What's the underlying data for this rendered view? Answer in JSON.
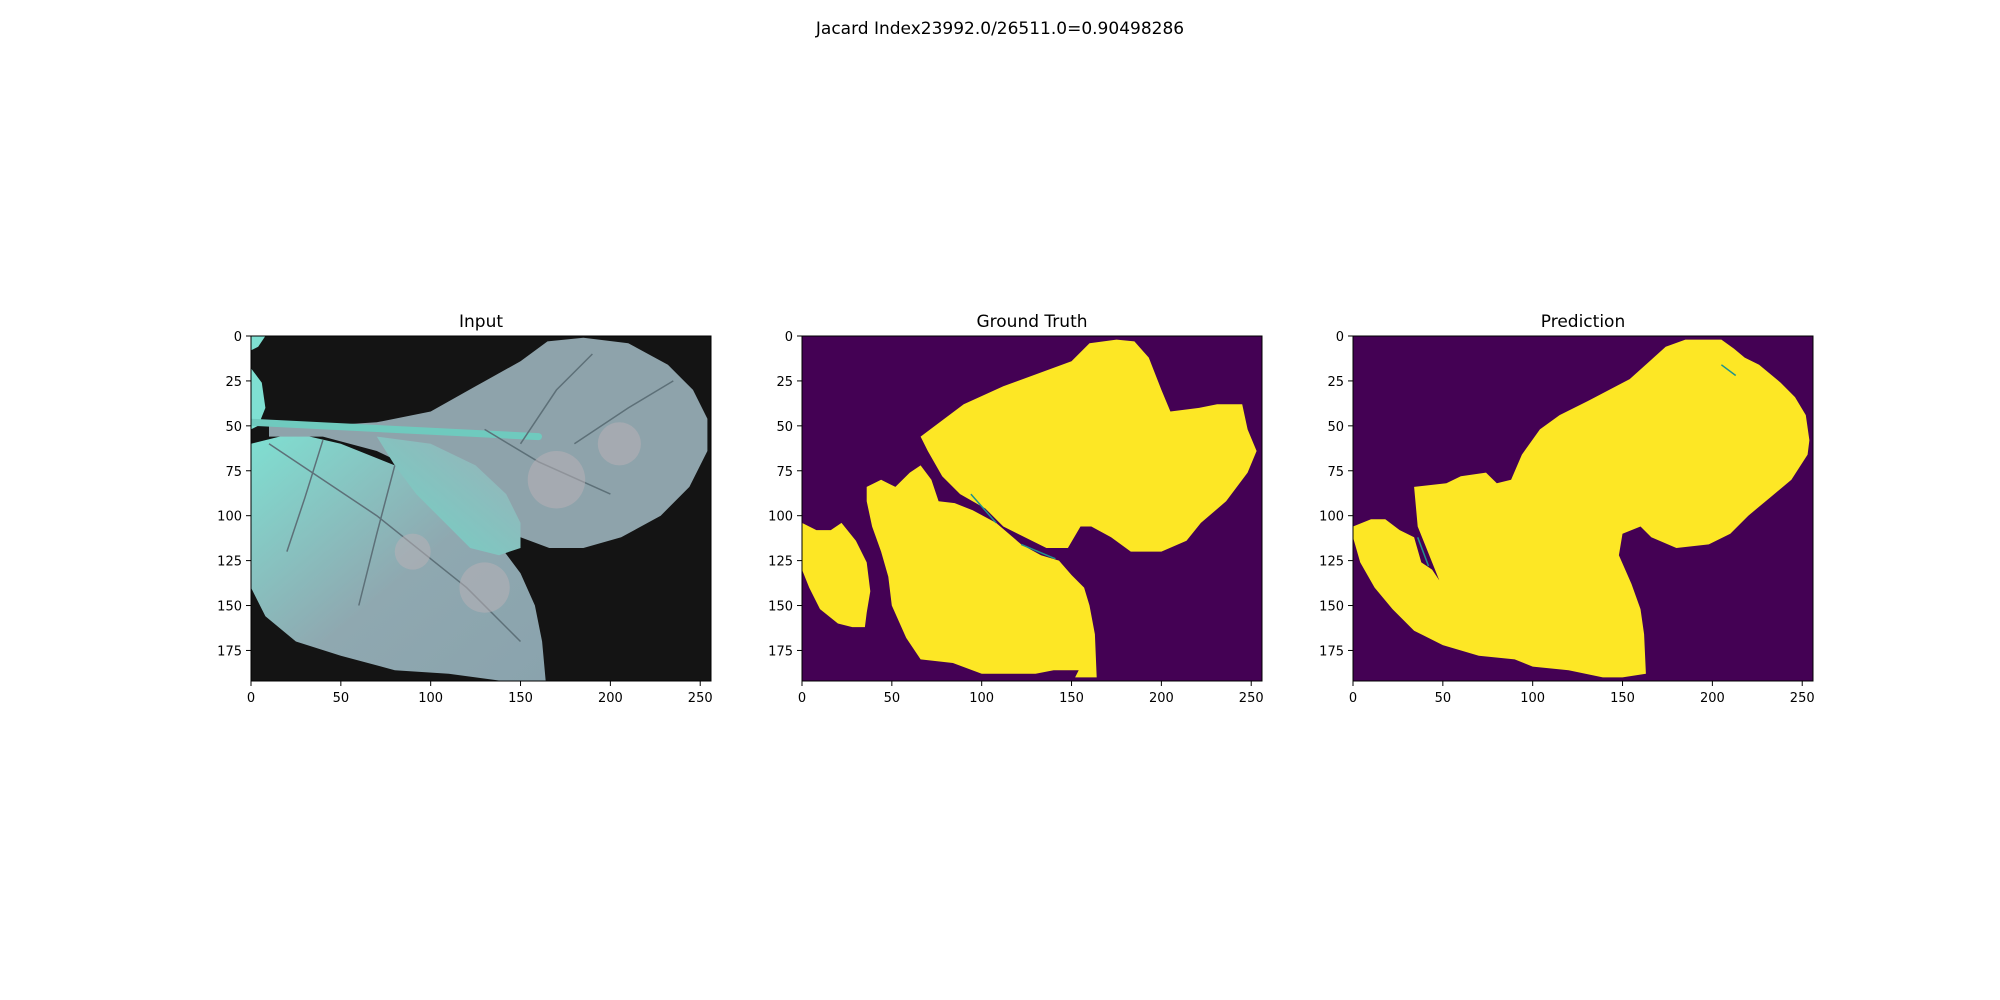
{
  "figure": {
    "suptitle": "Jacard Index23992.0/26511.0=0.90498286",
    "colors": {
      "background_mask": "#440154",
      "foreground_mask": "#fde725",
      "boundary_mask": "#21918c",
      "leaf_light": "#7fe0d2",
      "leaf_grey": "#8aa3ad",
      "image_bg": "#141414"
    }
  },
  "panels": [
    {
      "id": "input",
      "title": "Input",
      "kind": "image"
    },
    {
      "id": "ground_truth",
      "title": "Ground Truth",
      "kind": "mask"
    },
    {
      "id": "prediction",
      "title": "Prediction",
      "kind": "mask"
    }
  ],
  "axes": {
    "x_ticks": [
      "0",
      "50",
      "100",
      "150",
      "200",
      "250"
    ],
    "y_ticks": [
      "0",
      "25",
      "50",
      "75",
      "100",
      "125",
      "150",
      "175"
    ],
    "x_tick_values": [
      0,
      50,
      100,
      150,
      200,
      250
    ],
    "y_tick_values": [
      0,
      25,
      50,
      75,
      100,
      125,
      150,
      175
    ],
    "xlim": [
      0,
      256
    ],
    "ylim": [
      192,
      0
    ]
  },
  "chart_data": {
    "type": "heatmap",
    "title": "Jacard Index23992.0/26511.0=0.90498286",
    "panels": [
      "Input",
      "Ground Truth",
      "Prediction"
    ],
    "intersection": 23992.0,
    "union": 26511.0,
    "jaccard_index": 0.90498286,
    "image_width": 256,
    "image_height": 192,
    "xlim": [
      0,
      256
    ],
    "ylim": [
      192,
      0
    ],
    "x_ticks": [
      0,
      50,
      100,
      150,
      200,
      250
    ],
    "y_ticks": [
      0,
      25,
      50,
      75,
      100,
      125,
      150,
      175
    ],
    "grid": false,
    "masks": {
      "ground_truth": [
        [
          [
            66,
            56
          ],
          [
            90,
            38
          ],
          [
            112,
            28
          ],
          [
            150,
            14
          ],
          [
            160,
            4
          ],
          [
            175,
            2
          ],
          [
            185,
            3
          ],
          [
            193,
            12
          ],
          [
            200,
            30
          ],
          [
            205,
            42
          ],
          [
            221,
            40
          ],
          [
            231,
            38
          ],
          [
            245,
            38
          ],
          [
            248,
            52
          ],
          [
            253,
            64
          ],
          [
            248,
            76
          ],
          [
            236,
            92
          ],
          [
            222,
            104
          ],
          [
            214,
            114
          ],
          [
            200,
            120
          ],
          [
            183,
            120
          ],
          [
            172,
            112
          ],
          [
            161,
            106
          ],
          [
            155,
            106
          ],
          [
            148,
            118
          ],
          [
            136,
            118
          ],
          [
            112,
            106
          ],
          [
            102,
            96
          ],
          [
            88,
            88
          ],
          [
            78,
            78
          ],
          [
            70,
            64
          ]
        ],
        [
          [
            36,
            84
          ],
          [
            44,
            80
          ],
          [
            52,
            84
          ],
          [
            60,
            76
          ],
          [
            66,
            72
          ],
          [
            72,
            80
          ],
          [
            76,
            92
          ],
          [
            85,
            93
          ],
          [
            95,
            97
          ],
          [
            108,
            104
          ],
          [
            122,
            116
          ],
          [
            133,
            122
          ],
          [
            143,
            125
          ],
          [
            150,
            133
          ],
          [
            157,
            140
          ],
          [
            160,
            150
          ],
          [
            163,
            166
          ],
          [
            164,
            190
          ],
          [
            152,
            190
          ],
          [
            154,
            186
          ],
          [
            140,
            186
          ],
          [
            130,
            188
          ],
          [
            100,
            188
          ],
          [
            84,
            182
          ],
          [
            66,
            180
          ],
          [
            58,
            168
          ],
          [
            50,
            150
          ],
          [
            48,
            134
          ],
          [
            44,
            120
          ],
          [
            39,
            106
          ],
          [
            36,
            92
          ]
        ],
        [
          [
            0,
            104
          ],
          [
            8,
            108
          ],
          [
            16,
            108
          ],
          [
            22,
            104
          ],
          [
            30,
            114
          ],
          [
            36,
            126
          ],
          [
            38,
            142
          ],
          [
            36,
            154
          ],
          [
            35,
            162
          ],
          [
            28,
            162
          ],
          [
            20,
            160
          ],
          [
            10,
            152
          ],
          [
            4,
            140
          ],
          [
            0,
            130
          ]
        ]
      ],
      "prediction": [
        [
          [
            34,
            84
          ],
          [
            52,
            82
          ],
          [
            60,
            78
          ],
          [
            74,
            76
          ],
          [
            80,
            82
          ],
          [
            88,
            80
          ],
          [
            94,
            66
          ],
          [
            104,
            52
          ],
          [
            115,
            44
          ],
          [
            131,
            36
          ],
          [
            154,
            24
          ],
          [
            174,
            6
          ],
          [
            185,
            2
          ],
          [
            205,
            2
          ],
          [
            212,
            7
          ],
          [
            218,
            12
          ],
          [
            226,
            16
          ],
          [
            238,
            26
          ],
          [
            246,
            34
          ],
          [
            252,
            44
          ],
          [
            254,
            58
          ],
          [
            253,
            66
          ],
          [
            244,
            80
          ],
          [
            232,
            90
          ],
          [
            220,
            100
          ],
          [
            210,
            110
          ],
          [
            198,
            116
          ],
          [
            180,
            118
          ],
          [
            166,
            112
          ],
          [
            160,
            106
          ],
          [
            150,
            110
          ],
          [
            148,
            122
          ],
          [
            155,
            138
          ],
          [
            160,
            152
          ],
          [
            162,
            166
          ],
          [
            163,
            188
          ],
          [
            150,
            190
          ],
          [
            139,
            190
          ],
          [
            120,
            186
          ],
          [
            100,
            184
          ],
          [
            90,
            180
          ],
          [
            70,
            178
          ],
          [
            50,
            172
          ],
          [
            34,
            164
          ],
          [
            22,
            152
          ],
          [
            12,
            140
          ],
          [
            4,
            126
          ],
          [
            0,
            112
          ],
          [
            0,
            106
          ],
          [
            10,
            102
          ],
          [
            18,
            102
          ],
          [
            26,
            108
          ],
          [
            34,
            112
          ],
          [
            38,
            126
          ],
          [
            44,
            130
          ],
          [
            48,
            136
          ],
          [
            44,
            126
          ],
          [
            40,
            116
          ],
          [
            36,
            106
          ]
        ]
      ]
    }
  }
}
